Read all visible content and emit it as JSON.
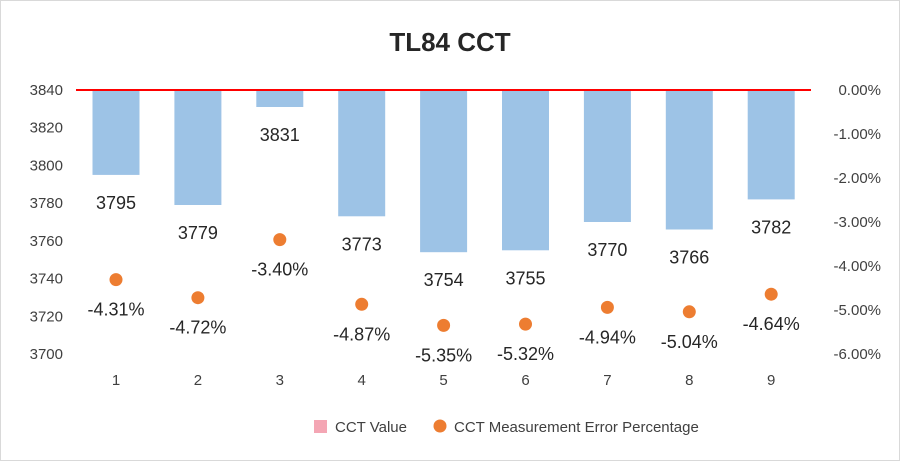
{
  "chart_data": {
    "type": "bar",
    "title": "TL84 CCT",
    "categories": [
      "1",
      "2",
      "3",
      "4",
      "5",
      "6",
      "7",
      "8",
      "9"
    ],
    "series": [
      {
        "name": "CCT Value",
        "type": "bar",
        "axis": "left",
        "color": "#9dc3e6",
        "values": [
          3795,
          3779,
          3831,
          3773,
          3754,
          3755,
          3770,
          3766,
          3782
        ],
        "labels": [
          "3795",
          "3779",
          "3831",
          "3773",
          "3754",
          "3755",
          "3770",
          "3766",
          "3782"
        ]
      },
      {
        "name": "CCT Measurement Error Percentage",
        "type": "scatter",
        "axis": "right",
        "color": "#ed7d31",
        "values": [
          -4.31,
          -4.72,
          -3.4,
          -4.87,
          -5.35,
          -5.32,
          -4.94,
          -5.04,
          -4.64
        ],
        "labels": [
          "-4.31%",
          "-4.72%",
          "-3.40%",
          "-4.87%",
          "-5.35%",
          "-5.32%",
          "-4.94%",
          "-5.04%",
          "-4.64%"
        ]
      }
    ],
    "y_left": {
      "ylim": [
        3700,
        3840
      ],
      "ticks": [
        "3840",
        "3820",
        "3800",
        "3780",
        "3760",
        "3740",
        "3720",
        "3700"
      ]
    },
    "y_right": {
      "ylim": [
        -6,
        0
      ],
      "ticks": [
        "0.00%",
        "-1.00%",
        "-2.00%",
        "-3.00%",
        "-4.00%",
        "-5.00%",
        "-6.00%"
      ]
    },
    "reference_line": {
      "color": "#ff0000"
    },
    "grid": false,
    "legend": {
      "position": "bottom",
      "items": [
        "CCT Value",
        "CCT Measurement Error Percentage"
      ],
      "colors": [
        "#f4a6b4",
        "#ed7d31"
      ]
    }
  }
}
